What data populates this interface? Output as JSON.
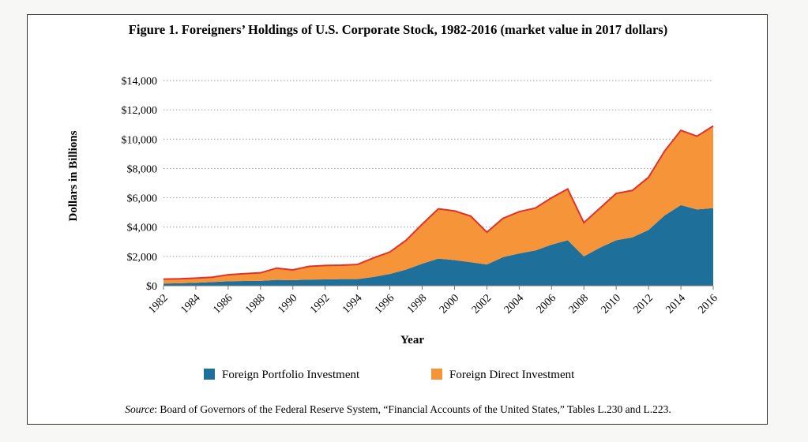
{
  "chart_data": {
    "type": "area",
    "stacked": true,
    "title": "Figure 1. Foreigners’ Holdings of U.S. Corporate Stock, 1982-2016 (market value in 2017 dollars)",
    "xlabel": "Year",
    "ylabel": "Dollars in Billions",
    "ylim": [
      0,
      14000
    ],
    "yticks": [
      0,
      2000,
      4000,
      6000,
      8000,
      10000,
      12000,
      14000
    ],
    "ytick_labels": [
      "$0",
      "$2,000",
      "$4,000",
      "$6,000",
      "$8,000",
      "$10,000",
      "$12,000",
      "$14,000"
    ],
    "xticks": [
      "1982",
      "1984",
      "1986",
      "1988",
      "1990",
      "1992",
      "1994",
      "1996",
      "1998",
      "2000",
      "2002",
      "2004",
      "2006",
      "2008",
      "2010",
      "2012",
      "2014",
      "2016"
    ],
    "grid": "horizontal dotted",
    "legend": "bottom",
    "x": [
      1982,
      1983,
      1984,
      1985,
      1986,
      1987,
      1988,
      1989,
      1990,
      1991,
      1992,
      1993,
      1994,
      1995,
      1996,
      1997,
      1998,
      1999,
      2000,
      2001,
      2002,
      2003,
      2004,
      2005,
      2006,
      2007,
      2008,
      2009,
      2010,
      2011,
      2012,
      2013,
      2014,
      2015,
      2016
    ],
    "series": [
      {
        "name": "Foreign Portfolio Investment",
        "color": "#1f6f9b",
        "values": [
          150,
          170,
          200,
          250,
          300,
          320,
          330,
          400,
          380,
          420,
          430,
          450,
          450,
          600,
          800,
          1100,
          1500,
          1850,
          1750,
          1600,
          1450,
          1950,
          2200,
          2400,
          2800,
          3100,
          2000,
          2600,
          3100,
          3300,
          3800,
          4800,
          5500,
          5200,
          5300
        ]
      },
      {
        "name": "Foreign Direct Investment",
        "color": "#f6943a",
        "values": [
          300,
          300,
          320,
          330,
          450,
          500,
          550,
          800,
          700,
          900,
          950,
          950,
          1000,
          1300,
          1500,
          2000,
          2700,
          3400,
          3350,
          3150,
          2200,
          2650,
          2850,
          2900,
          3200,
          3500,
          2300,
          2700,
          3200,
          3200,
          3600,
          4400,
          5100,
          5000,
          5600
        ]
      }
    ],
    "source_label": "Source",
    "source_text": ": Board of Governors of the Federal Reserve System, “Financial Accounts of the United States,” Tables L.230 and L.223."
  }
}
